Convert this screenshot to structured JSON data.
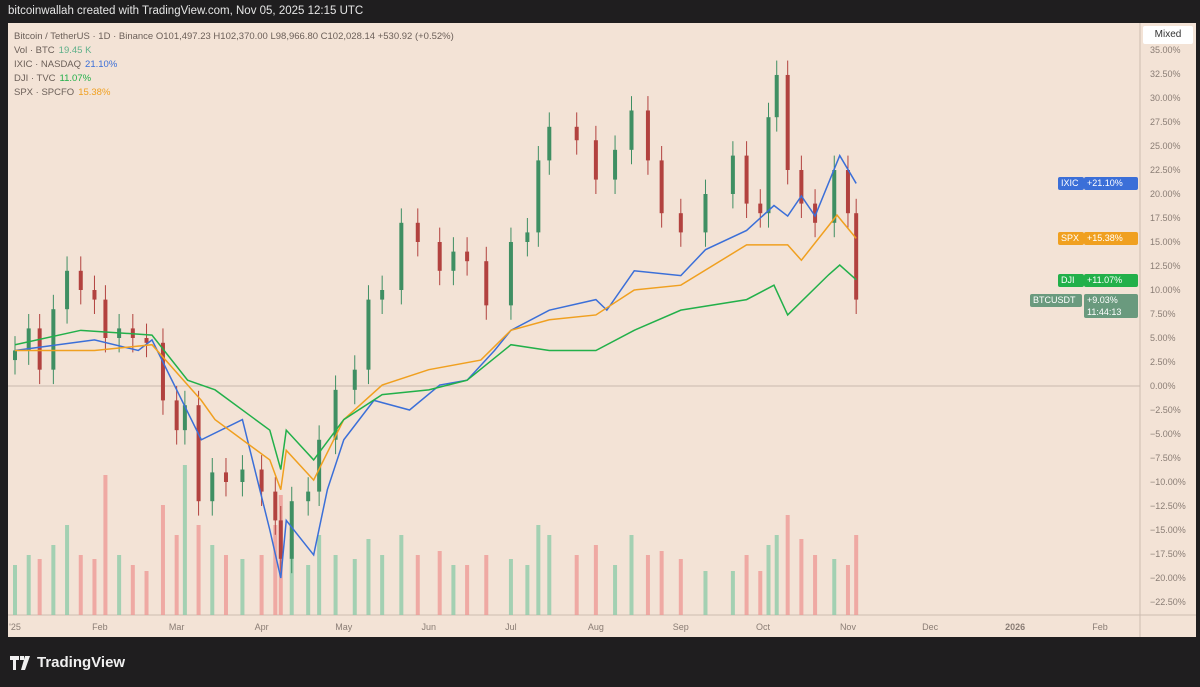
{
  "header": {
    "attribution": "bitcoinwallah created with TradingView.com, Nov 05, 2025 12:15 UTC"
  },
  "legend": {
    "main": "Bitcoin / TetherUS · 1D · Binance  O101,497.23  H102,370.00  L98,966.80  C102,028.14  +530.92 (+0.52%)",
    "rows": [
      {
        "name": "Vol · BTC",
        "value": "19.45 K",
        "color": "#5fb08a"
      },
      {
        "name": "IXIC · NASDAQ",
        "value": "21.10%",
        "color": "#3b6fd8"
      },
      {
        "name": "DJI · TVC",
        "value": "11.07%",
        "color": "#22b04a"
      },
      {
        "name": "SPX · SPCFO",
        "value": "15.38%",
        "color": "#f0a020"
      }
    ]
  },
  "scale_button": "Mixed",
  "footer": {
    "brand": "TradingView"
  },
  "chart_data": {
    "type": "line",
    "y_unit": "%",
    "ylim": [
      -23.5,
      36
    ],
    "y_ticks": [
      "35.00%",
      "32.50%",
      "30.00%",
      "27.50%",
      "25.00%",
      "22.50%",
      "20.00%",
      "17.50%",
      "15.00%",
      "12.50%",
      "10.00%",
      "7.50%",
      "5.00%",
      "2.50%",
      "0.00%",
      "−2.50%",
      "−5.00%",
      "−7.50%",
      "−10.00%",
      "−12.50%",
      "−15.00%",
      "−17.50%",
      "−20.00%",
      "−22.50%"
    ],
    "y_tick_values": [
      35,
      32.5,
      30,
      27.5,
      25,
      22.5,
      20,
      17.5,
      15,
      12.5,
      10,
      7.5,
      5,
      2.5,
      0,
      -2.5,
      -5,
      -7.5,
      -10,
      -12.5,
      -15,
      -17.5,
      -20,
      -22.5
    ],
    "x_ticks": [
      {
        "label": "'25",
        "date": "2025-01-01"
      },
      {
        "label": "Feb",
        "date": "2025-02-01"
      },
      {
        "label": "Mar",
        "date": "2025-03-01"
      },
      {
        "label": "Apr",
        "date": "2025-04-01"
      },
      {
        "label": "May",
        "date": "2025-05-01"
      },
      {
        "label": "Jun",
        "date": "2025-06-01"
      },
      {
        "label": "Jul",
        "date": "2025-07-01"
      },
      {
        "label": "Aug",
        "date": "2025-08-01"
      },
      {
        "label": "Sep",
        "date": "2025-09-01"
      },
      {
        "label": "Oct",
        "date": "2025-10-01"
      },
      {
        "label": "Nov",
        "date": "2025-11-01"
      },
      {
        "label": "Dec",
        "date": "2025-12-01"
      },
      {
        "label": "2026",
        "date": "2026-01-01"
      },
      {
        "label": "Feb",
        "date": "2026-02-01"
      }
    ],
    "btc": {
      "name": "BTCUSDT",
      "label_value": "+9.03%",
      "countdown": "11:44:13",
      "up_color": "#3f8f63",
      "down_color": "#b2423f",
      "points": [
        [
          "2025-01-01",
          3.7,
          25
        ],
        [
          "2025-01-06",
          6,
          30
        ],
        [
          "2025-01-10",
          1.7,
          28
        ],
        [
          "2025-01-15",
          8,
          35
        ],
        [
          "2025-01-20",
          12,
          45
        ],
        [
          "2025-01-25",
          10,
          30
        ],
        [
          "2025-01-30",
          9,
          28
        ],
        [
          "2025-02-03",
          5,
          70
        ],
        [
          "2025-02-08",
          6,
          30
        ],
        [
          "2025-02-13",
          5,
          25
        ],
        [
          "2025-02-18",
          4.5,
          22
        ],
        [
          "2025-02-24",
          -1.5,
          55
        ],
        [
          "2025-03-01",
          -4.6,
          40
        ],
        [
          "2025-03-04",
          -2,
          75
        ],
        [
          "2025-03-09",
          -12,
          45
        ],
        [
          "2025-03-14",
          -9,
          35
        ],
        [
          "2025-03-19",
          -10,
          30
        ],
        [
          "2025-03-25",
          -8.7,
          28
        ],
        [
          "2025-04-01",
          -11,
          30
        ],
        [
          "2025-04-06",
          -14,
          45
        ],
        [
          "2025-04-08",
          -18,
          60
        ],
        [
          "2025-04-12",
          -12,
          38
        ],
        [
          "2025-04-18",
          -11,
          25
        ],
        [
          "2025-04-22",
          -5.6,
          40
        ],
        [
          "2025-04-28",
          -0.4,
          30
        ],
        [
          "2025-05-05",
          1.7,
          28
        ],
        [
          "2025-05-10",
          9,
          38
        ],
        [
          "2025-05-15",
          10,
          30
        ],
        [
          "2025-05-22",
          17,
          40
        ],
        [
          "2025-05-28",
          15,
          30
        ],
        [
          "2025-06-05",
          12,
          32
        ],
        [
          "2025-06-10",
          14,
          25
        ],
        [
          "2025-06-15",
          13,
          25
        ],
        [
          "2025-06-22",
          8.4,
          30
        ],
        [
          "2025-07-01",
          15,
          28
        ],
        [
          "2025-07-07",
          16,
          25
        ],
        [
          "2025-07-11",
          23.5,
          45
        ],
        [
          "2025-07-15",
          27,
          40
        ],
        [
          "2025-07-25",
          25.6,
          30
        ],
        [
          "2025-08-01",
          21.5,
          35
        ],
        [
          "2025-08-08",
          24.6,
          25
        ],
        [
          "2025-08-14",
          28.7,
          40
        ],
        [
          "2025-08-20",
          23.5,
          30
        ],
        [
          "2025-08-25",
          18,
          32
        ],
        [
          "2025-09-01",
          16,
          28
        ],
        [
          "2025-09-10",
          20,
          22
        ],
        [
          "2025-09-20",
          24,
          22
        ],
        [
          "2025-09-25",
          19,
          30
        ],
        [
          "2025-09-30",
          18,
          22
        ],
        [
          "2025-10-03",
          28,
          35
        ],
        [
          "2025-10-06",
          32.4,
          40
        ],
        [
          "2025-10-10",
          22.5,
          50
        ],
        [
          "2025-10-15",
          19,
          38
        ],
        [
          "2025-10-20",
          17,
          30
        ],
        [
          "2025-10-27",
          22.5,
          28
        ],
        [
          "2025-11-01",
          18,
          25
        ],
        [
          "2025-11-04",
          9,
          40
        ]
      ]
    },
    "series": [
      {
        "name": "IXIC",
        "label_value": "+21.10%",
        "color": "#3b6fd8",
        "points": [
          [
            "2025-01-01",
            3.7
          ],
          [
            "2025-01-30",
            4.8
          ],
          [
            "2025-02-15",
            3.7
          ],
          [
            "2025-02-20",
            4.8
          ],
          [
            "2025-03-01",
            -0.4
          ],
          [
            "2025-03-10",
            -5.6
          ],
          [
            "2025-03-25",
            -3.5
          ],
          [
            "2025-04-04",
            -15
          ],
          [
            "2025-04-08",
            -20
          ],
          [
            "2025-04-10",
            -14
          ],
          [
            "2025-04-20",
            -17.6
          ],
          [
            "2025-04-25",
            -10.8
          ],
          [
            "2025-05-01",
            -5.6
          ],
          [
            "2025-05-12",
            -1.5
          ],
          [
            "2025-05-25",
            -2.5
          ],
          [
            "2025-06-05",
            0.1
          ],
          [
            "2025-06-15",
            0.6
          ],
          [
            "2025-06-25",
            3.7
          ],
          [
            "2025-07-01",
            5.8
          ],
          [
            "2025-07-15",
            7.9
          ],
          [
            "2025-08-01",
            9
          ],
          [
            "2025-08-05",
            7.9
          ],
          [
            "2025-08-15",
            12
          ],
          [
            "2025-09-01",
            11.5
          ],
          [
            "2025-09-10",
            14.2
          ],
          [
            "2025-09-25",
            16.2
          ],
          [
            "2025-10-05",
            18.8
          ],
          [
            "2025-10-10",
            17.7
          ],
          [
            "2025-10-15",
            19.8
          ],
          [
            "2025-10-20",
            17.7
          ],
          [
            "2025-10-29",
            24
          ],
          [
            "2025-11-04",
            21.1
          ]
        ]
      },
      {
        "name": "SPX",
        "label_value": "+15.38%",
        "color": "#f0a020",
        "points": [
          [
            "2025-01-01",
            3.7
          ],
          [
            "2025-01-30",
            3.7
          ],
          [
            "2025-02-20",
            4.3
          ],
          [
            "2025-03-10",
            -1.5
          ],
          [
            "2025-03-15",
            -3.5
          ],
          [
            "2025-04-04",
            -7.7
          ],
          [
            "2025-04-08",
            -10.8
          ],
          [
            "2025-04-10",
            -6.7
          ],
          [
            "2025-04-20",
            -9.8
          ],
          [
            "2025-05-01",
            -3.5
          ],
          [
            "2025-05-15",
            0.1
          ],
          [
            "2025-06-01",
            1.7
          ],
          [
            "2025-06-20",
            2.7
          ],
          [
            "2025-07-01",
            5.8
          ],
          [
            "2025-07-15",
            6.9
          ],
          [
            "2025-08-01",
            7.4
          ],
          [
            "2025-08-15",
            10
          ],
          [
            "2025-09-01",
            10.5
          ],
          [
            "2025-09-25",
            14.7
          ],
          [
            "2025-10-10",
            14.7
          ],
          [
            "2025-10-15",
            13.1
          ],
          [
            "2025-10-28",
            17.8
          ],
          [
            "2025-11-04",
            15.38
          ]
        ]
      },
      {
        "name": "DJI",
        "label_value": "+11.07%",
        "color": "#22b04a",
        "points": [
          [
            "2025-01-01",
            4.3
          ],
          [
            "2025-01-25",
            5.8
          ],
          [
            "2025-02-20",
            5.3
          ],
          [
            "2025-03-05",
            0.6
          ],
          [
            "2025-03-15",
            -0.4
          ],
          [
            "2025-04-04",
            -4.6
          ],
          [
            "2025-04-08",
            -8.7
          ],
          [
            "2025-04-10",
            -4.6
          ],
          [
            "2025-04-20",
            -7.7
          ],
          [
            "2025-05-01",
            -3.5
          ],
          [
            "2025-05-15",
            -0.9
          ],
          [
            "2025-06-01",
            -0.4
          ],
          [
            "2025-06-15",
            0.6
          ],
          [
            "2025-07-01",
            4.3
          ],
          [
            "2025-07-15",
            3.7
          ],
          [
            "2025-08-01",
            3.7
          ],
          [
            "2025-08-15",
            5.8
          ],
          [
            "2025-09-01",
            7.9
          ],
          [
            "2025-09-25",
            9
          ],
          [
            "2025-10-05",
            10.5
          ],
          [
            "2025-10-10",
            7.4
          ],
          [
            "2025-10-25",
            11.6
          ],
          [
            "2025-10-29",
            12.6
          ],
          [
            "2025-11-04",
            11.07
          ]
        ]
      }
    ]
  }
}
